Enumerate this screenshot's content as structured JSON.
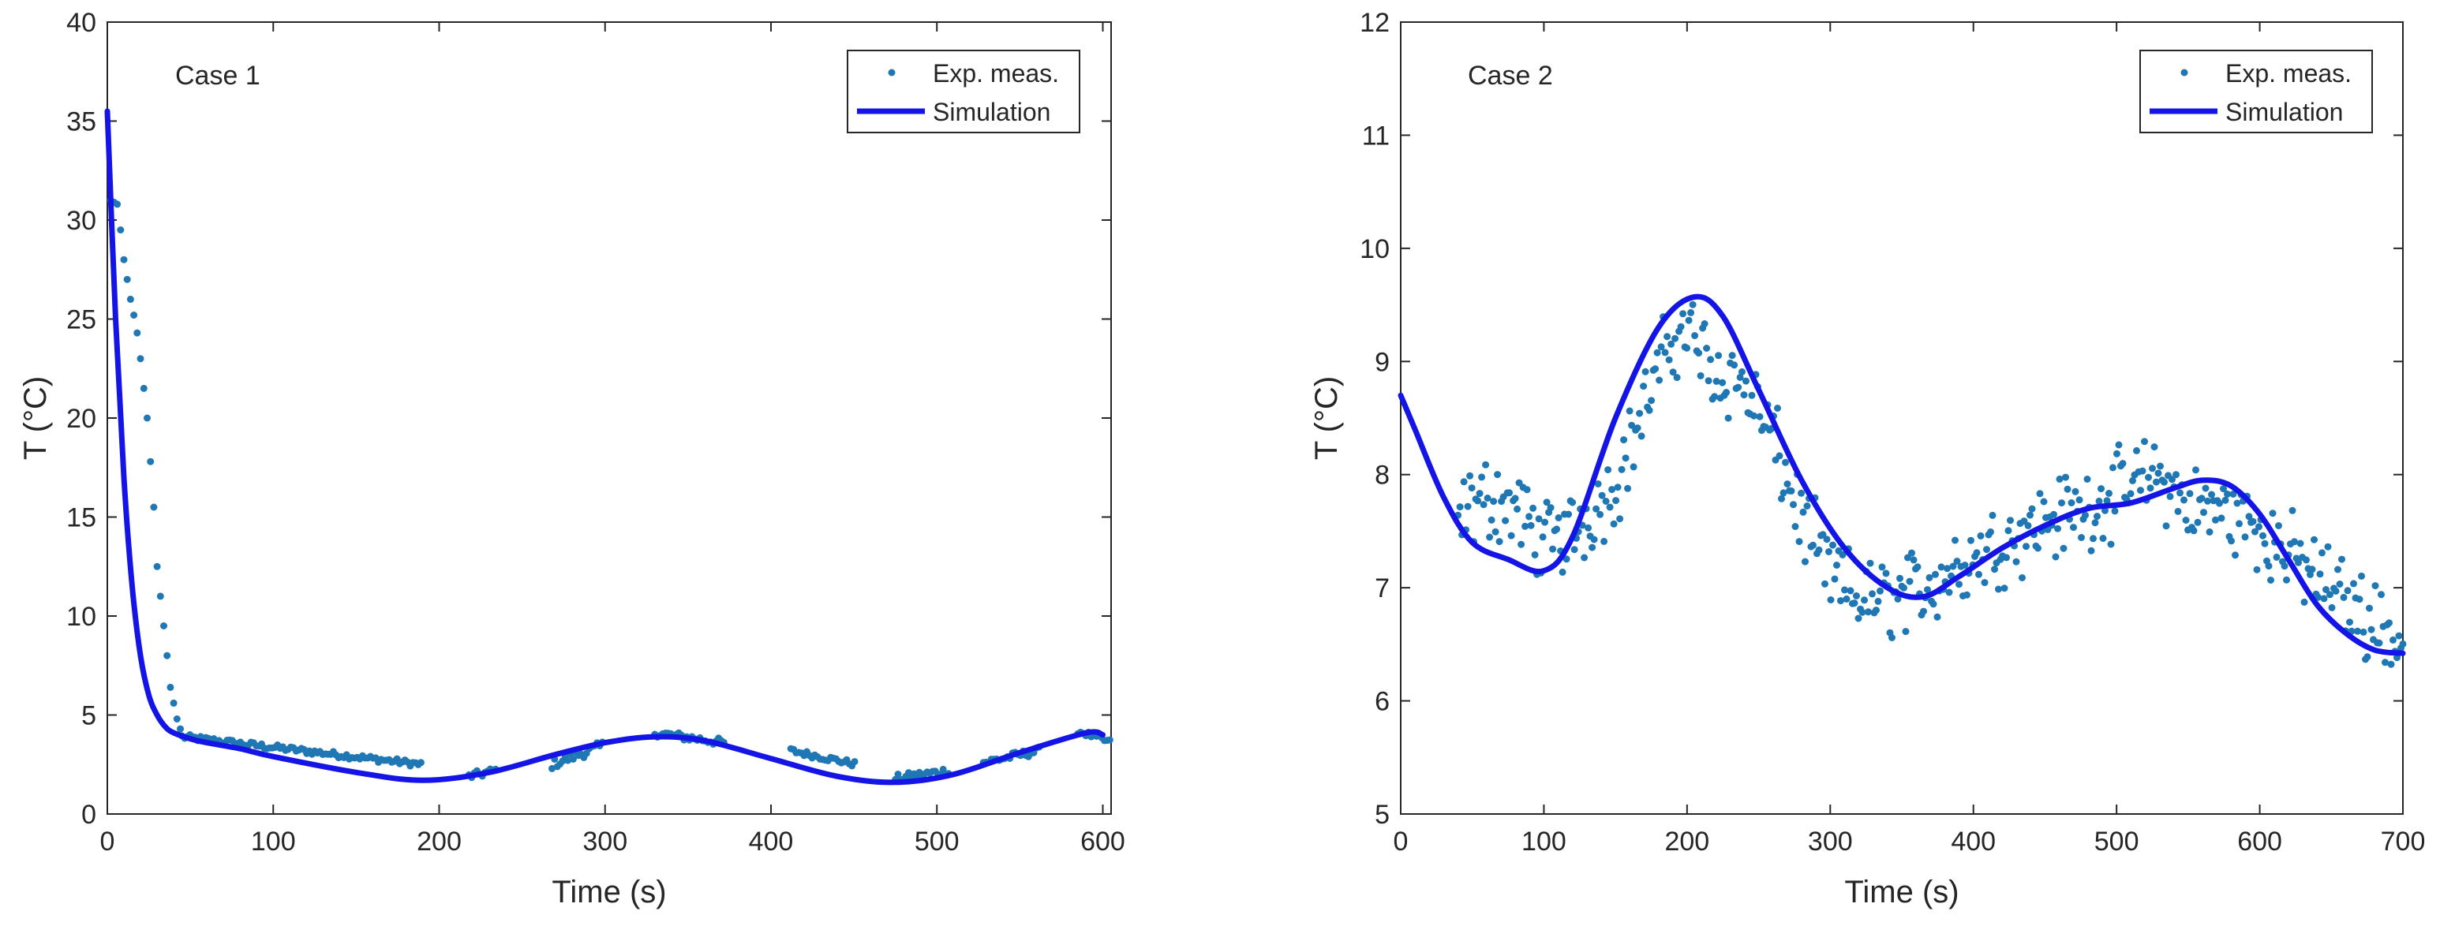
{
  "colors": {
    "simulation": "#1414e6",
    "measurement": "#1f77b4",
    "axis": "#262626",
    "background": "#ffffff"
  },
  "chart_data": [
    {
      "type": "scatter+line",
      "annotation": "Case 1",
      "xlabel": "Time (s)",
      "ylabel": "T (°C)",
      "xlim": [
        0,
        605
      ],
      "ylim": [
        0,
        40
      ],
      "xticks": [
        0,
        100,
        200,
        300,
        400,
        500,
        600
      ],
      "yticks": [
        0,
        5,
        10,
        15,
        20,
        25,
        30,
        35,
        40
      ],
      "legend": {
        "position": "top-right",
        "entries": [
          "Exp. meas.",
          "Simulation"
        ]
      },
      "simulation": {
        "name": "Simulation",
        "t": [
          0,
          5,
          10,
          15,
          20,
          25,
          30,
          35,
          40,
          50,
          60,
          80,
          100,
          150,
          190,
          230,
          270,
          300,
          330,
          360,
          400,
          440,
          475,
          510,
          550,
          590,
          600
        ],
        "T": [
          35.5,
          25,
          17,
          11.5,
          8,
          6,
          5,
          4.4,
          4.1,
          3.8,
          3.6,
          3.3,
          2.9,
          2.1,
          1.7,
          2.1,
          3.0,
          3.6,
          3.9,
          3.7,
          2.8,
          1.9,
          1.6,
          2.0,
          3.1,
          4.1,
          4.0
        ]
      },
      "measurements": {
        "name": "Exp. meas.",
        "segments": [
          {
            "t": [
              2,
              4,
              6,
              8,
              10,
              12,
              14,
              16,
              18,
              20,
              22,
              24,
              26,
              28,
              30,
              32,
              34,
              36,
              38,
              40,
              42,
              44
            ],
            "T": [
              31,
              30.9,
              30.8,
              29.5,
              28,
              27,
              26,
              25.2,
              24.3,
              23,
              21.5,
              20,
              17.8,
              15.5,
              12.5,
              11,
              9.5,
              8,
              6.4,
              5.6,
              4.8,
              4.3
            ]
          },
          {
            "t0": 45,
            "t1": 190,
            "a": 3.9,
            "b": 2.5,
            "amp": 0.15
          },
          {
            "t0": 218,
            "t1": 235,
            "a": 1.9,
            "b": 2.2,
            "amp": 0.2
          },
          {
            "t0": 268,
            "t1": 300,
            "a": 2.5,
            "b": 3.5,
            "amp": 0.25
          },
          {
            "t0": 330,
            "t1": 372,
            "a": 4.1,
            "b": 3.6,
            "amp": 0.2
          },
          {
            "t0": 412,
            "t1": 452,
            "a": 3.2,
            "b": 2.5,
            "amp": 0.15
          },
          {
            "t0": 475,
            "t1": 508,
            "a": 1.8,
            "b": 2.2,
            "amp": 0.2
          },
          {
            "t0": 528,
            "t1": 562,
            "a": 2.6,
            "b": 3.2,
            "amp": 0.2
          },
          {
            "t0": 585,
            "t1": 605,
            "a": 4.2,
            "b": 3.6,
            "amp": 0.15
          }
        ]
      }
    },
    {
      "type": "scatter+line",
      "annotation": "Case 2",
      "xlabel": "Time (s)",
      "ylabel": "T (°C)",
      "xlim": [
        0,
        700
      ],
      "ylim": [
        5,
        12
      ],
      "xticks": [
        0,
        100,
        200,
        300,
        400,
        500,
        600,
        700
      ],
      "yticks": [
        5,
        6,
        7,
        8,
        9,
        10,
        11,
        12
      ],
      "legend": {
        "position": "top-right",
        "entries": [
          "Exp. meas.",
          "Simulation"
        ]
      },
      "simulation": {
        "name": "Simulation",
        "t": [
          0,
          10,
          30,
          50,
          75,
          100,
          120,
          150,
          180,
          205,
          225,
          250,
          280,
          310,
          340,
          365,
          390,
          420,
          450,
          480,
          510,
          540,
          560,
          580,
          600,
          620,
          640,
          660,
          680,
          700
        ],
        "T": [
          8.7,
          8.4,
          7.8,
          7.4,
          7.25,
          7.15,
          7.45,
          8.5,
          9.3,
          9.57,
          9.4,
          8.75,
          7.95,
          7.35,
          7.0,
          6.92,
          7.1,
          7.35,
          7.55,
          7.7,
          7.75,
          7.88,
          7.95,
          7.9,
          7.65,
          7.25,
          6.85,
          6.6,
          6.45,
          6.42
        ]
      },
      "measurements": {
        "name": "Exp. meas.",
        "trend": {
          "t": [
            40,
            60,
            80,
            100,
            120,
            150,
            170,
            190,
            200,
            220,
            240,
            260,
            280,
            300,
            320,
            340,
            365,
            390,
            420,
            450,
            480,
            510,
            530,
            550,
            570,
            590,
            610,
            630,
            650,
            670,
            690,
            700
          ],
          "T": [
            7.6,
            7.8,
            7.7,
            7.4,
            7.5,
            7.9,
            8.6,
            9.2,
            9.3,
            8.9,
            8.8,
            8.3,
            7.6,
            7.1,
            6.9,
            6.9,
            7.0,
            7.2,
            7.4,
            7.6,
            7.7,
            7.9,
            8.0,
            7.7,
            7.7,
            7.6,
            7.4,
            7.2,
            7.0,
            6.8,
            6.6,
            6.45
          ]
        },
        "count": 480,
        "spread": 0.45
      }
    }
  ]
}
